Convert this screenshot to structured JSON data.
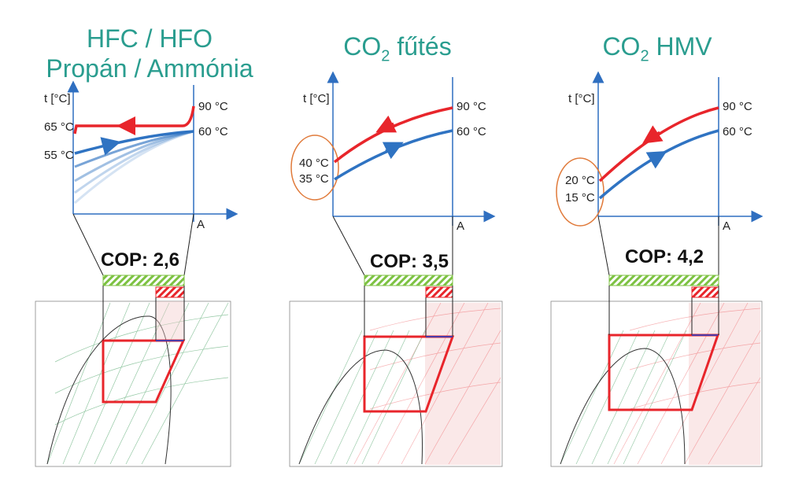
{
  "colors": {
    "title": "#2a9d8f",
    "hot_line": "#e8252b",
    "cold_line": "#2f73c2",
    "axis": "#2f6fc0",
    "highlight": "#e8252b",
    "ellipse": "#e07a3a",
    "hatch_green": "#7dc242",
    "hatch_red": "#e8252b"
  },
  "panels": [
    {
      "title_line1": "HFC / HFO",
      "title_line2": "Propán / Ammónia",
      "ylabel": "t [°C]",
      "xlabel": "A",
      "labels": [
        "90 °C",
        "65 °C",
        "60 °C",
        "55 °C"
      ],
      "cop": "COP: 2,6"
    },
    {
      "title_main": "CO",
      "title_sub": "2",
      "title_rest": " fűtés",
      "ylabel": "t [°C]",
      "xlabel": "A",
      "labels": [
        "90 °C",
        "60 °C",
        "40 °C",
        "35 °C"
      ],
      "cop": "COP: 3,5"
    },
    {
      "title_main": "CO",
      "title_sub": "2",
      "title_rest": " HMV",
      "ylabel": "t [°C]",
      "xlabel": "A",
      "labels": [
        "90 °C",
        "60 °C",
        "20 °C",
        "15 °C"
      ],
      "cop": "COP: 4,2"
    }
  ]
}
